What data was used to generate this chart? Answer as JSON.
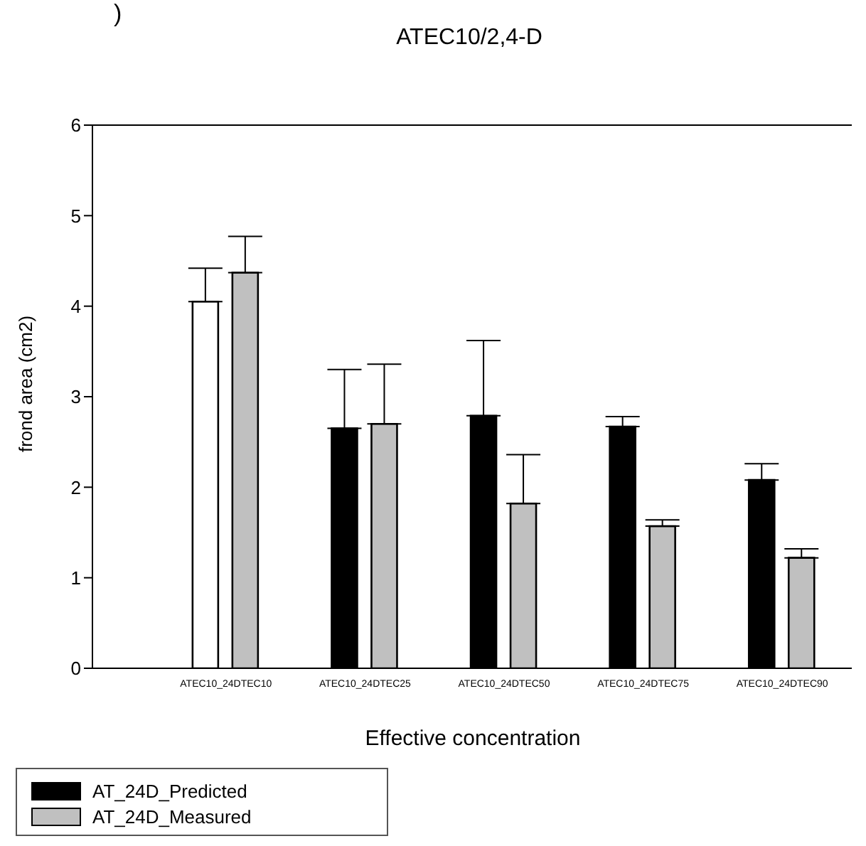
{
  "chart_data": {
    "type": "bar",
    "title": "ATEC10/2,4-D",
    "xlabel": "Effective concentration",
    "ylabel": "frond area (cm2)",
    "annotations": [
      ")"
    ],
    "categories": [
      "ATEC10_24DTEC10",
      "ATEC10_24DTEC25",
      "ATEC10_24DTEC50",
      "ATEC10_24DTEC75",
      "ATEC10_24DTEC90"
    ],
    "series": [
      {
        "name": "AT_24D_Predicted",
        "color": "#000000",
        "colors": [
          "#ffffff",
          "#000000",
          "#000000",
          "#000000",
          "#000000"
        ],
        "values": [
          4.05,
          2.65,
          2.79,
          2.67,
          2.08
        ],
        "errors": [
          [
            4.05,
            4.42
          ],
          [
            2.65,
            3.3
          ],
          [
            2.79,
            3.62
          ],
          [
            2.67,
            2.78
          ],
          [
            2.08,
            2.26
          ]
        ]
      },
      {
        "name": "AT_24D_Measured",
        "color": "#c0c0c0",
        "values": [
          4.37,
          2.7,
          1.82,
          1.57,
          1.22
        ],
        "errors": [
          [
            4.37,
            4.77
          ],
          [
            2.7,
            3.36
          ],
          [
            1.82,
            2.36
          ],
          [
            1.57,
            1.64
          ],
          [
            1.22,
            1.32
          ]
        ]
      }
    ],
    "ylim": [
      0,
      6
    ],
    "yticks": [
      0,
      1,
      2,
      3,
      4,
      5,
      6
    ],
    "legend": "bottom left"
  }
}
